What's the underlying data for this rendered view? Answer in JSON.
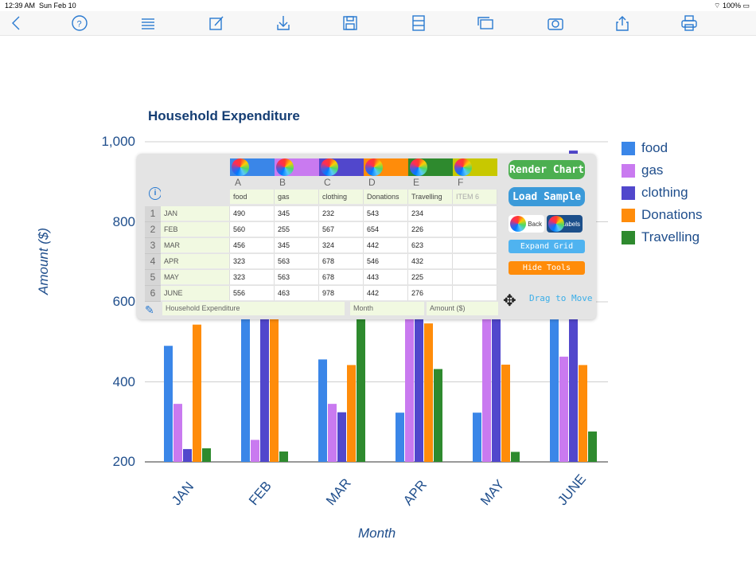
{
  "status": {
    "time": "12:39 AM",
    "date": "Sun Feb 10",
    "battery": "100%"
  },
  "toolbar": {
    "icons": [
      "back-icon",
      "help-icon",
      "list-icon",
      "edit-icon",
      "download-icon",
      "save-icon",
      "cabinet-icon",
      "windows-icon",
      "camera-icon",
      "share-icon",
      "print-icon"
    ]
  },
  "chart_data": {
    "type": "bar",
    "title": "Household Expenditure",
    "xlabel": "Month",
    "ylabel": "Amount ($)",
    "categories": [
      "JAN",
      "FEB",
      "MAR",
      "APR",
      "MAY",
      "JUNE"
    ],
    "ylim": [
      200,
      1000
    ],
    "yticks": [
      "200",
      "400",
      "600",
      "800",
      "1,000"
    ],
    "grid": true,
    "legend_position": "right",
    "series": [
      {
        "name": "food",
        "color": "#3a86e8",
        "values": [
          490,
          560,
          456,
          323,
          323,
          556
        ]
      },
      {
        "name": "gas",
        "color": "#c97af0",
        "values": [
          345,
          255,
          345,
          563,
          563,
          463
        ]
      },
      {
        "name": "clothing",
        "color": "#5147cc",
        "values": [
          232,
          567,
          324,
          678,
          678,
          978
        ]
      },
      {
        "name": "Donations",
        "color": "#ff8c0a",
        "values": [
          543,
          654,
          442,
          546,
          443,
          442
        ]
      },
      {
        "name": "Travelling",
        "color": "#2e8a2e",
        "values": [
          234,
          226,
          623,
          432,
          225,
          276
        ]
      }
    ]
  },
  "panel": {
    "column_letters": [
      "A",
      "B",
      "C",
      "D",
      "E",
      "F"
    ],
    "column_colors": [
      "#3a86e8",
      "#c97af0",
      "#5147cc",
      "#ff8c0a",
      "#2e8a2e",
      "#c8c800"
    ],
    "headers": [
      "food",
      "gas",
      "clothing",
      "Donations",
      "Travelling",
      "ITEM 6"
    ],
    "rows": [
      {
        "num": "1",
        "label": "JAN",
        "cells": [
          "490",
          "345",
          "232",
          "543",
          "234",
          ""
        ]
      },
      {
        "num": "2",
        "label": "FEB",
        "cells": [
          "560",
          "255",
          "567",
          "654",
          "226",
          ""
        ]
      },
      {
        "num": "3",
        "label": "MAR",
        "cells": [
          "456",
          "345",
          "324",
          "442",
          "623",
          ""
        ]
      },
      {
        "num": "4",
        "label": "APR",
        "cells": [
          "323",
          "563",
          "678",
          "546",
          "432",
          ""
        ]
      },
      {
        "num": "5",
        "label": "MAY",
        "cells": [
          "323",
          "563",
          "678",
          "443",
          "225",
          ""
        ]
      },
      {
        "num": "6",
        "label": "JUNE",
        "cells": [
          "556",
          "463",
          "978",
          "442",
          "276",
          ""
        ]
      }
    ],
    "title_field": "Household Expenditure",
    "x_field": "Month",
    "y_field": "Amount ($)",
    "buttons": {
      "render": "Render Chart",
      "load": "Load Sample",
      "back": "Back",
      "labels": "Labels",
      "expand": "Expand Grid",
      "hide": "Hide Tools",
      "drag": "Drag to Move"
    }
  }
}
